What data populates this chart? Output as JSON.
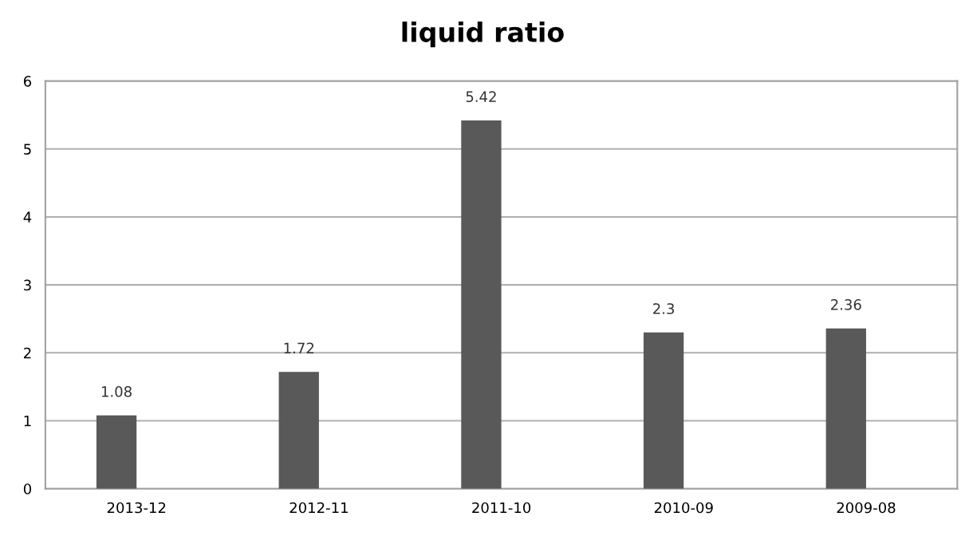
{
  "chart_data": {
    "type": "bar",
    "title": "liquid ratio",
    "categories": [
      "2013-12",
      "2012-11",
      "2011-10",
      "2010-09",
      "2009-08"
    ],
    "values": [
      1.08,
      1.72,
      5.42,
      2.3,
      2.36
    ],
    "color": "#595959",
    "ylim": [
      0,
      6
    ],
    "yticks": [
      0,
      1,
      2,
      3,
      4,
      5,
      6
    ],
    "grid": "y",
    "data_labels": true
  }
}
